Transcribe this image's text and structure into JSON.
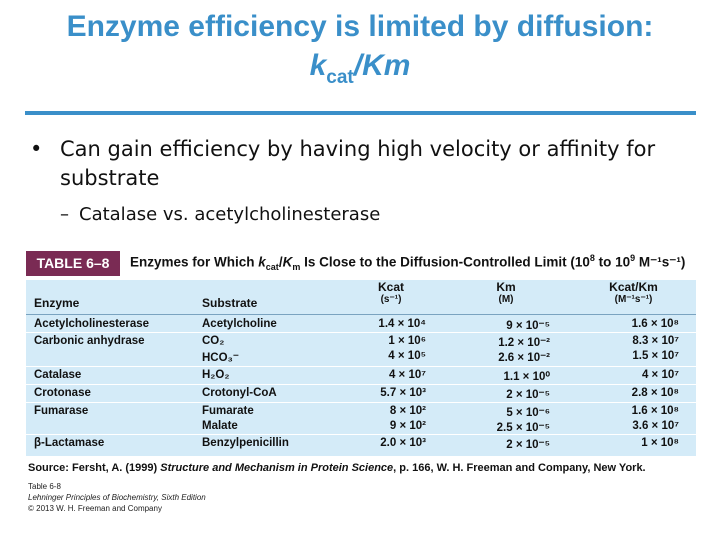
{
  "title": {
    "line1": "Enzyme efficiency is limited by diffusion:",
    "line2_main": "k",
    "line2_sub": "cat",
    "line2_rest": "/Km"
  },
  "bullet": {
    "marker": "•",
    "text": "Can gain efficiency by having high velocity or affinity for substrate"
  },
  "subbullet": {
    "marker": "–",
    "text": "Catalase vs. acetylcholinesterase"
  },
  "table": {
    "tag": "TABLE 6–8",
    "title_parts": {
      "pre": "Enzymes for Which ",
      "k": "k",
      "cat": "cat",
      "slash": "/",
      "K": "K",
      "m": "m",
      "post": " Is Close to the Diffusion-Controlled Limit (10",
      "exp1": "8",
      "mid": " to 10",
      "exp2": "9",
      "units": " M⁻¹s⁻¹)"
    },
    "headers": {
      "enzyme": "Enzyme",
      "substrate": "Substrate",
      "kcat": "Kcat",
      "kcat_unit": "(s⁻¹)",
      "km": "Km",
      "km_unit": "(M)",
      "ratio": "Kcat/Km",
      "ratio_unit": "(M⁻¹s⁻¹)"
    },
    "rows": [
      {
        "enzyme": "Acetylcholinesterase",
        "substrate": "Acetylcholine",
        "kcat": "1.4 × 10⁴",
        "km": "9 × 10⁻⁵",
        "ratio": "1.6 × 10⁸"
      },
      {
        "enzyme": "Carbonic anhydrase",
        "substrate": "CO₂",
        "kcat": "1 × 10⁶",
        "km": "1.2 × 10⁻²",
        "ratio": "8.3 × 10⁷"
      },
      {
        "enzyme": "",
        "substrate": "HCO₃⁻",
        "kcat": "4 × 10⁵",
        "km": "2.6 × 10⁻²",
        "ratio": "1.5 × 10⁷"
      },
      {
        "enzyme": "Catalase",
        "substrate": "H₂O₂",
        "kcat": "4 × 10⁷",
        "km": "1.1 × 10⁰",
        "ratio": "4 × 10⁷"
      },
      {
        "enzyme": "Crotonase",
        "substrate": "Crotonyl-CoA",
        "kcat": "5.7 × 10³",
        "km": "2 × 10⁻⁵",
        "ratio": "2.8 × 10⁸"
      },
      {
        "enzyme": "Fumarase",
        "substrate": "Fumarate",
        "kcat": "8 × 10²",
        "km": "5 × 10⁻⁶",
        "ratio": "1.6 × 10⁸"
      },
      {
        "enzyme": "",
        "substrate": "Malate",
        "kcat": "9 × 10²",
        "km": "2.5 × 10⁻⁵",
        "ratio": "3.6 × 10⁷"
      },
      {
        "enzyme": "β-Lactamase",
        "substrate": "Benzylpenicillin",
        "kcat": "2.0 × 10³",
        "km": "2 × 10⁻⁵",
        "ratio": "1 × 10⁸"
      }
    ],
    "source_pre": "Source: Fersht, A. (1999) ",
    "source_book": "Structure and Mechanism in Protein Science",
    "source_post": ", p. 166, W. H. Freeman and Company, New York.",
    "credit_line1": "Table 6-8",
    "credit_line2": "Lehninger Principles of Biochemistry, Sixth Edition",
    "credit_line3": "© 2013 W. H. Freeman and Company"
  },
  "colors": {
    "title": "#3a8fc9",
    "rule": "#3a8fc9",
    "table_tag_bg": "#7a2b54",
    "table_body_bg": "#d4ebf8"
  }
}
